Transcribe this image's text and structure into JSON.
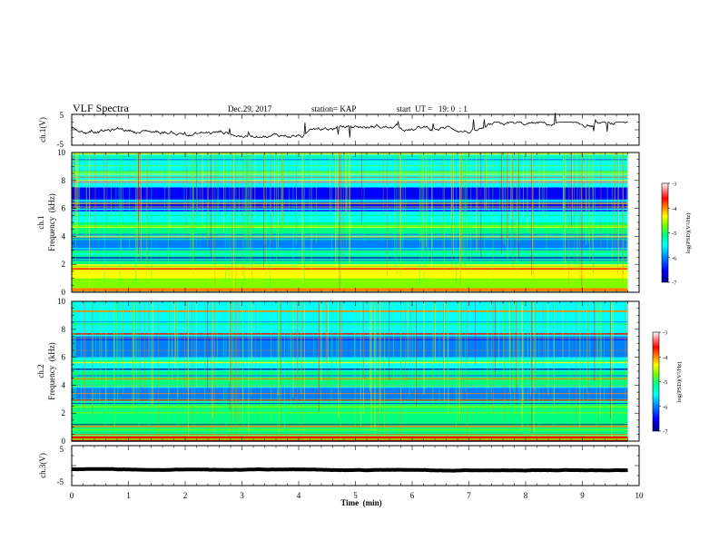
{
  "header": {
    "title": "VLF Spectra",
    "date": "Dec.29, 2017",
    "station": "station= KAP",
    "start_ut": "start  UT =   19: 0  : 1"
  },
  "chart_data": [
    {
      "type": "line",
      "name": "ch1-waveform",
      "ylabel": "ch.1(V)",
      "ylim": [
        -5,
        5
      ],
      "yticks": [
        "5",
        "-5"
      ],
      "x_range_min": [
        0,
        9.8
      ],
      "trace_level_V": [
        -1.5,
        1.5
      ]
    },
    {
      "type": "heatmap",
      "name": "ch1-spectrogram",
      "ylabel_line1": "ch.1",
      "ylabel_line2": "Frequency  (kHz)",
      "ylim": [
        0,
        10
      ],
      "yticks": [
        "0",
        "2",
        "4",
        "6",
        "8",
        "10"
      ],
      "x_range_min": [
        0,
        9.8
      ],
      "colorbar": {
        "label": "log(PSD)(V²/Hz)",
        "range": [
          -7,
          -3
        ],
        "ticks": [
          "-3",
          "-4",
          "-5",
          "-6",
          "-7"
        ],
        "colors": [
          "#000080",
          "#0000ff",
          "#0080ff",
          "#00ffff",
          "#00ff80",
          "#80ff00",
          "#ffff00",
          "#ff8000",
          "#ff0000",
          "#ff8080",
          "#ffffff"
        ]
      },
      "bands_kHz": [
        {
          "from": 0,
          "to": 0.3,
          "level": -4.2
        },
        {
          "from": 0.3,
          "to": 1.0,
          "level": -5.0
        },
        {
          "from": 1.0,
          "to": 2.0,
          "level": -4.8
        },
        {
          "from": 2.0,
          "to": 3.0,
          "level": -5.3
        },
        {
          "from": 3.0,
          "to": 4.0,
          "level": -6.2
        },
        {
          "from": 4.0,
          "to": 5.0,
          "level": -5.2
        },
        {
          "from": 5.0,
          "to": 6.0,
          "level": -5.9
        },
        {
          "from": 6.0,
          "to": 7.5,
          "level": -6.4
        },
        {
          "from": 7.5,
          "to": 10.0,
          "level": -5.6
        }
      ]
    },
    {
      "type": "heatmap",
      "name": "ch2-spectrogram",
      "ylabel_line1": "ch.2",
      "ylabel_line2": "Frequency  (kHz)",
      "ylim": [
        0,
        10
      ],
      "yticks": [
        "0",
        "2",
        "4",
        "6",
        "8",
        "10"
      ],
      "x_range_min": [
        0,
        9.8
      ],
      "colorbar": {
        "label": "log(PSD)(V²/Hz)",
        "range": [
          -7,
          -3
        ],
        "ticks": [
          "-3",
          "-4",
          "-5",
          "-6",
          "-7"
        ]
      },
      "bands_kHz": [
        {
          "from": 0,
          "to": 0.5,
          "level": -4.0
        },
        {
          "from": 0.5,
          "to": 2.0,
          "level": -5.2
        },
        {
          "from": 2.0,
          "to": 3.0,
          "level": -5.5
        },
        {
          "from": 3.0,
          "to": 4.0,
          "level": -6.0
        },
        {
          "from": 4.0,
          "to": 5.0,
          "level": -5.3
        },
        {
          "from": 5.0,
          "to": 6.0,
          "level": -5.8
        },
        {
          "from": 6.0,
          "to": 7.5,
          "level": -6.2
        },
        {
          "from": 7.5,
          "to": 10.0,
          "level": -5.9
        }
      ]
    },
    {
      "type": "line",
      "name": "ch3-waveform",
      "ylabel": "ch.3(V)",
      "ylim": [
        -5,
        5
      ],
      "yticks": [
        "5",
        "-5"
      ],
      "x_range_min": [
        0,
        9.8
      ],
      "trace_level_V": [
        -1.3,
        -0.5
      ]
    }
  ],
  "x_axis": {
    "label": "Time  (min)",
    "range": [
      0,
      10
    ],
    "ticks": [
      "0",
      "1",
      "2",
      "3",
      "4",
      "5",
      "6",
      "7",
      "8",
      "9",
      "10"
    ]
  }
}
